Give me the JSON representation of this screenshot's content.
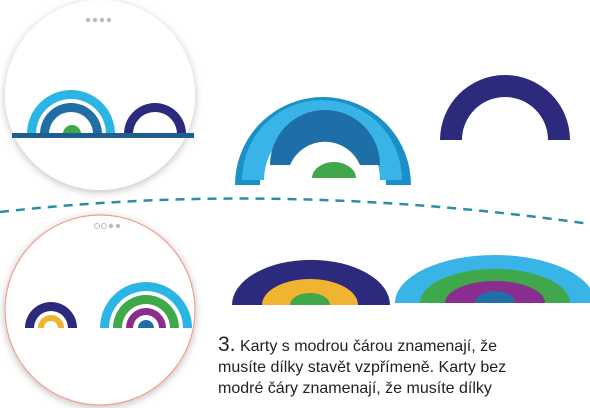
{
  "step": {
    "number": "3.",
    "lines": [
      "Karty s modrou čárou znamenají, že",
      "musíte dílky stavět vzpřímeně. Karty bez",
      "modré čáry znamenají, že musíte dílky"
    ]
  }
}
